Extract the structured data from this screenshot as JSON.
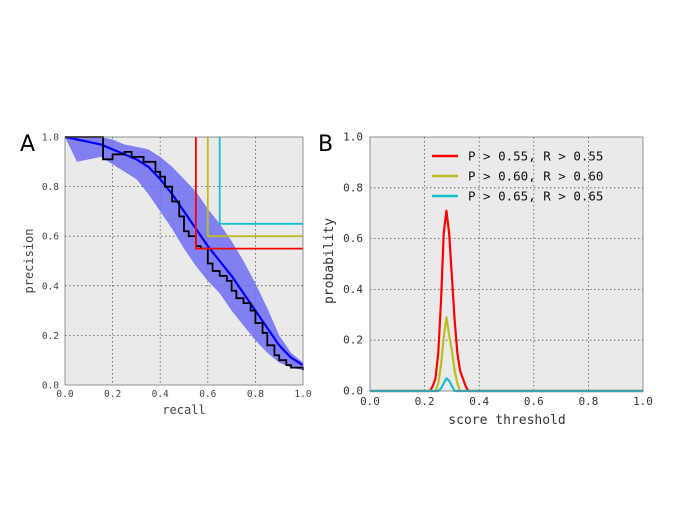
{
  "chart_data": [
    {
      "panel_label": "A",
      "type": "line",
      "xlabel": "recall",
      "ylabel": "precision",
      "xlim": [
        0.0,
        1.0
      ],
      "ylim": [
        0.0,
        1.0
      ],
      "xticks": [
        "0.0",
        "0.2",
        "0.4",
        "0.6",
        "0.8",
        "1.0"
      ],
      "yticks": [
        "0.0",
        "0.2",
        "0.4",
        "0.6",
        "0.8",
        "1.0"
      ],
      "grid": true,
      "series": [
        {
          "style": "band",
          "color": "#6d6df5",
          "x": [
            0.0,
            0.05,
            0.1,
            0.15,
            0.2,
            0.25,
            0.3,
            0.35,
            0.4,
            0.45,
            0.5,
            0.55,
            0.6,
            0.65,
            0.7,
            0.75,
            0.8,
            0.85,
            0.9,
            0.95,
            1.0
          ],
          "upper": [
            1.0,
            1.0,
            1.0,
            1.0,
            0.99,
            0.97,
            0.96,
            0.95,
            0.92,
            0.88,
            0.83,
            0.78,
            0.71,
            0.65,
            0.58,
            0.5,
            0.41,
            0.31,
            0.2,
            0.13,
            0.09
          ],
          "lower": [
            1.0,
            0.9,
            0.91,
            0.92,
            0.89,
            0.86,
            0.83,
            0.77,
            0.7,
            0.63,
            0.55,
            0.48,
            0.42,
            0.37,
            0.3,
            0.24,
            0.18,
            0.13,
            0.09,
            0.07,
            0.06
          ]
        },
        {
          "style": "line",
          "color": "#0000ff",
          "x": [
            0.0,
            0.05,
            0.1,
            0.15,
            0.2,
            0.25,
            0.3,
            0.35,
            0.4,
            0.45,
            0.5,
            0.55,
            0.6,
            0.65,
            0.7,
            0.75,
            0.8,
            0.85,
            0.9,
            0.95,
            1.0
          ],
          "y": [
            1.0,
            0.99,
            0.98,
            0.97,
            0.95,
            0.93,
            0.91,
            0.88,
            0.83,
            0.77,
            0.7,
            0.63,
            0.56,
            0.5,
            0.44,
            0.37,
            0.3,
            0.23,
            0.16,
            0.11,
            0.08
          ]
        },
        {
          "style": "step",
          "color": "#000000",
          "x": [
            0.0,
            0.05,
            0.1,
            0.16,
            0.16,
            0.17,
            0.2,
            0.25,
            0.28,
            0.3,
            0.33,
            0.35,
            0.38,
            0.4,
            0.42,
            0.45,
            0.48,
            0.5,
            0.52,
            0.55,
            0.57,
            0.6,
            0.62,
            0.65,
            0.68,
            0.7,
            0.72,
            0.75,
            0.78,
            0.8,
            0.83,
            0.85,
            0.88,
            0.9,
            0.93,
            0.95,
            1.0
          ],
          "y": [
            1.0,
            1.0,
            1.0,
            1.0,
            0.91,
            0.91,
            0.93,
            0.94,
            0.92,
            0.92,
            0.9,
            0.9,
            0.86,
            0.84,
            0.8,
            0.74,
            0.68,
            0.62,
            0.6,
            0.56,
            0.55,
            0.49,
            0.46,
            0.44,
            0.42,
            0.38,
            0.35,
            0.33,
            0.3,
            0.25,
            0.21,
            0.16,
            0.12,
            0.1,
            0.08,
            0.07,
            0.06
          ]
        },
        {
          "style": "threshold",
          "color": "#ff0000",
          "x": [
            0.55,
            0.55,
            1.0
          ],
          "y": [
            1.0,
            0.55,
            0.55
          ]
        },
        {
          "style": "threshold",
          "color": "#bcbd22",
          "x": [
            0.6,
            0.6,
            1.0
          ],
          "y": [
            1.0,
            0.6,
            0.6
          ]
        },
        {
          "style": "threshold",
          "color": "#17becf",
          "x": [
            0.65,
            0.65,
            1.0
          ],
          "y": [
            1.0,
            0.65,
            0.65
          ]
        }
      ]
    },
    {
      "panel_label": "B",
      "type": "line",
      "xlabel": "score threshold",
      "ylabel": "probability",
      "xlim": [
        0.0,
        1.0
      ],
      "ylim": [
        0.0,
        1.0
      ],
      "xticks": [
        "0.0",
        "0.2",
        "0.4",
        "0.6",
        "0.8",
        "1.0"
      ],
      "yticks": [
        "0.0",
        "0.2",
        "0.4",
        "0.6",
        "0.8",
        "1.0"
      ],
      "grid": true,
      "legend_position": "top-right",
      "series": [
        {
          "name": "P > 0.55, R > 0.55",
          "color": "#ff0000",
          "x": [
            0.0,
            0.22,
            0.23,
            0.24,
            0.25,
            0.26,
            0.27,
            0.28,
            0.29,
            0.3,
            0.31,
            0.32,
            0.33,
            0.34,
            0.35,
            0.36,
            1.0
          ],
          "y": [
            0.0,
            0.0,
            0.02,
            0.05,
            0.15,
            0.35,
            0.62,
            0.71,
            0.62,
            0.45,
            0.28,
            0.15,
            0.08,
            0.05,
            0.02,
            0.0,
            0.0
          ]
        },
        {
          "name": "P > 0.60, R > 0.60",
          "color": "#bcbd22",
          "x": [
            0.0,
            0.24,
            0.25,
            0.26,
            0.27,
            0.28,
            0.29,
            0.3,
            0.31,
            0.32,
            0.33,
            1.0
          ],
          "y": [
            0.0,
            0.0,
            0.03,
            0.1,
            0.21,
            0.29,
            0.22,
            0.16,
            0.08,
            0.03,
            0.0,
            0.0
          ]
        },
        {
          "name": "P > 0.65, R > 0.65",
          "color": "#17becf",
          "x": [
            0.0,
            0.25,
            0.26,
            0.27,
            0.28,
            0.29,
            0.3,
            0.31,
            1.0
          ],
          "y": [
            0.0,
            0.0,
            0.01,
            0.03,
            0.05,
            0.04,
            0.02,
            0.0,
            0.0
          ]
        }
      ]
    }
  ]
}
